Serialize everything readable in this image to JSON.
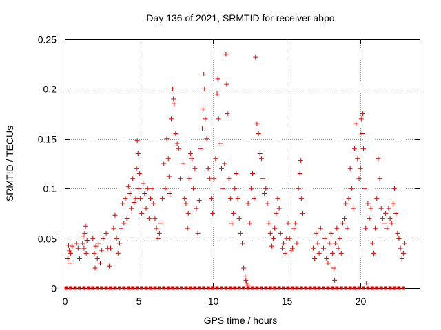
{
  "chart_data": {
    "type": "scatter",
    "title": "Day 136 of 2021, SRMTID for receiver abpo",
    "xlabel": "GPS time / hours",
    "ylabel": "SRMTID / TECUs",
    "xlim": [
      0,
      24
    ],
    "ylim": [
      0,
      0.25
    ],
    "x_ticks": [
      0,
      5,
      10,
      15,
      20
    ],
    "y_ticks": [
      0,
      0.05,
      0.1,
      0.15,
      0.2,
      0.25
    ],
    "x_tick_labels": [
      "0",
      "5",
      "10",
      "15",
      "20"
    ],
    "y_tick_labels": [
      "0",
      "0.05",
      "0.1",
      "0.15",
      "0.2",
      "0.25"
    ],
    "grid": true,
    "legend": "none",
    "marker": "plus",
    "color": "#e00000",
    "zero_marker": "square",
    "series": [
      {
        "name": "SRMTID",
        "points": [
          [
            0.2,
            0.03
          ],
          [
            0.25,
            0.043
          ],
          [
            0.3,
            0.038
          ],
          [
            0.35,
            0.025
          ],
          [
            0.4,
            0.035
          ],
          [
            0.5,
            0.042
          ],
          [
            0.8,
            0.045
          ],
          [
            0.9,
            0.04
          ],
          [
            1.0,
            0.03
          ],
          [
            1.2,
            0.045
          ],
          [
            1.25,
            0.052
          ],
          [
            1.3,
            0.04
          ],
          [
            1.35,
            0.055
          ],
          [
            1.4,
            0.062
          ],
          [
            1.45,
            0.035
          ],
          [
            1.5,
            0.048
          ],
          [
            1.9,
            0.05
          ],
          [
            2.0,
            0.035
          ],
          [
            2.05,
            0.02
          ],
          [
            2.1,
            0.042
          ],
          [
            2.2,
            0.03
          ],
          [
            2.3,
            0.045
          ],
          [
            2.4,
            0.025
          ],
          [
            2.5,
            0.038
          ],
          [
            2.6,
            0.05
          ],
          [
            2.8,
            0.055
          ],
          [
            2.9,
            0.04
          ],
          [
            3.0,
            0.022
          ],
          [
            3.1,
            0.04
          ],
          [
            3.3,
            0.06
          ],
          [
            3.4,
            0.073
          ],
          [
            3.5,
            0.05
          ],
          [
            3.6,
            0.035
          ],
          [
            3.7,
            0.045
          ],
          [
            3.8,
            0.06
          ],
          [
            3.9,
            0.085
          ],
          [
            4.0,
            0.065
          ],
          [
            4.1,
            0.09
          ],
          [
            4.2,
            0.07
          ],
          [
            4.3,
            0.102
          ],
          [
            4.4,
            0.095
          ],
          [
            4.5,
            0.08
          ],
          [
            4.6,
            0.11
          ],
          [
            4.7,
            0.086
          ],
          [
            4.8,
            0.09
          ],
          [
            4.85,
            0.12
          ],
          [
            4.9,
            0.148
          ],
          [
            4.95,
            0.135
          ],
          [
            5.0,
            0.1
          ],
          [
            5.05,
            0.115
          ],
          [
            5.1,
            0.09
          ],
          [
            5.2,
            0.075
          ],
          [
            5.3,
            0.105
          ],
          [
            5.4,
            0.095
          ],
          [
            5.5,
            0.08
          ],
          [
            5.6,
            0.1
          ],
          [
            5.7,
            0.07
          ],
          [
            5.8,
            0.09
          ],
          [
            5.9,
            0.1
          ],
          [
            6.0,
            0.085
          ],
          [
            6.1,
            0.07
          ],
          [
            6.2,
            0.06
          ],
          [
            6.3,
            0.05
          ],
          [
            6.4,
            0.055
          ],
          [
            6.5,
            0.065
          ],
          [
            6.6,
            0.09
          ],
          [
            6.7,
            0.125
          ],
          [
            6.8,
            0.1
          ],
          [
            6.9,
            0.15
          ],
          [
            7.0,
            0.13
          ],
          [
            7.05,
            0.112
          ],
          [
            7.1,
            0.095
          ],
          [
            7.2,
            0.17
          ],
          [
            7.3,
            0.2
          ],
          [
            7.35,
            0.19
          ],
          [
            7.4,
            0.185
          ],
          [
            7.5,
            0.155
          ],
          [
            7.6,
            0.145
          ],
          [
            7.7,
            0.14
          ],
          [
            7.8,
            0.11
          ],
          [
            8.0,
            0.125
          ],
          [
            8.1,
            0.09
          ],
          [
            8.2,
            0.085
          ],
          [
            8.3,
            0.06
          ],
          [
            8.35,
            0.075
          ],
          [
            8.4,
            0.11
          ],
          [
            8.5,
            0.135
          ],
          [
            8.6,
            0.13
          ],
          [
            8.7,
            0.1
          ],
          [
            8.8,
            0.12
          ],
          [
            8.9,
            0.08
          ],
          [
            9.0,
            0.055
          ],
          [
            9.1,
            0.088
          ],
          [
            9.2,
            0.14
          ],
          [
            9.3,
            0.16
          ],
          [
            9.35,
            0.18
          ],
          [
            9.4,
            0.215
          ],
          [
            9.45,
            0.2
          ],
          [
            9.5,
            0.17
          ],
          [
            9.6,
            0.15
          ],
          [
            9.7,
            0.12
          ],
          [
            9.8,
            0.11
          ],
          [
            9.9,
            0.09
          ],
          [
            10.0,
            0.075
          ],
          [
            10.1,
            0.11
          ],
          [
            10.2,
            0.13
          ],
          [
            10.3,
            0.195
          ],
          [
            10.35,
            0.21
          ],
          [
            10.4,
            0.17
          ],
          [
            10.5,
            0.145
          ],
          [
            10.6,
            0.12
          ],
          [
            10.7,
            0.1
          ],
          [
            10.8,
            0.125
          ],
          [
            10.9,
            0.235
          ],
          [
            10.95,
            0.205
          ],
          [
            11.0,
            0.175
          ],
          [
            11.1,
            0.11
          ],
          [
            11.2,
            0.09
          ],
          [
            11.3,
            0.065
          ],
          [
            11.4,
            0.075
          ],
          [
            11.5,
            0.1
          ],
          [
            11.6,
            0.115
          ],
          [
            11.7,
            0.09
          ],
          [
            11.8,
            0.07
          ],
          [
            11.9,
            0.055
          ],
          [
            12.0,
            0.045
          ],
          [
            12.1,
            0.02
          ],
          [
            12.2,
            0.012
          ],
          [
            12.25,
            0.008
          ],
          [
            12.3,
            0.005
          ],
          [
            12.35,
            0.003
          ],
          [
            12.4,
            0.085
          ],
          [
            12.5,
            0.065
          ],
          [
            12.6,
            0.1
          ],
          [
            12.7,
            0.115
          ],
          [
            12.8,
            0.09
          ],
          [
            12.9,
            0.232
          ],
          [
            13.0,
            0.165
          ],
          [
            13.1,
            0.155
          ],
          [
            13.2,
            0.135
          ],
          [
            13.3,
            0.13
          ],
          [
            13.4,
            0.11
          ],
          [
            13.5,
            0.095
          ],
          [
            13.6,
            0.1
          ],
          [
            13.7,
            0.085
          ],
          [
            13.8,
            0.065
          ],
          [
            13.9,
            0.055
          ],
          [
            14.0,
            0.042
          ],
          [
            14.1,
            0.05
          ],
          [
            14.2,
            0.06
          ],
          [
            14.3,
            0.075
          ],
          [
            14.4,
            0.09
          ],
          [
            14.5,
            0.08
          ],
          [
            14.6,
            0.055
          ],
          [
            14.7,
            0.04
          ],
          [
            14.8,
            0.045
          ],
          [
            14.9,
            0.035
          ],
          [
            15.0,
            0.05
          ],
          [
            15.1,
            0.065
          ],
          [
            15.2,
            0.05
          ],
          [
            15.3,
            0.038
          ],
          [
            15.4,
            0.04
          ],
          [
            15.5,
            0.06
          ],
          [
            15.6,
            0.065
          ],
          [
            15.7,
            0.045
          ],
          [
            15.8,
            0.1
          ],
          [
            15.9,
            0.115
          ],
          [
            15.95,
            0.128
          ],
          [
            16.0,
            0.09
          ],
          [
            16.1,
            0.075
          ],
          [
            16.8,
            0.04
          ],
          [
            16.9,
            0.03
          ],
          [
            17.0,
            0.055
          ],
          [
            17.1,
            0.045
          ],
          [
            17.2,
            0.035
          ],
          [
            17.3,
            0.06
          ],
          [
            17.5,
            0.04
          ],
          [
            17.6,
            0.05
          ],
          [
            17.7,
            0.03
          ],
          [
            17.8,
            0.025
          ],
          [
            17.9,
            0.045
          ],
          [
            18.0,
            0.055
          ],
          [
            18.1,
            0.035
          ],
          [
            18.2,
            0.02
          ],
          [
            18.25,
            0.008
          ],
          [
            18.3,
            0.045
          ],
          [
            18.4,
            0.06
          ],
          [
            18.5,
            0.04
          ],
          [
            18.6,
            0.05
          ],
          [
            18.7,
            0.035
          ],
          [
            18.8,
            0.065
          ],
          [
            18.9,
            0.07
          ],
          [
            19.0,
            0.085
          ],
          [
            19.1,
            0.06
          ],
          [
            19.2,
            0.09
          ],
          [
            19.3,
            0.12
          ],
          [
            19.4,
            0.1
          ],
          [
            19.5,
            0.08
          ],
          [
            19.6,
            0.14
          ],
          [
            19.7,
            0.165
          ],
          [
            19.8,
            0.13
          ],
          [
            19.9,
            0.11
          ],
          [
            20.0,
            0.12
          ],
          [
            20.05,
            0.17
          ],
          [
            20.1,
            0.155
          ],
          [
            20.15,
            0.175
          ],
          [
            20.2,
            0.14
          ],
          [
            20.3,
            0.1
          ],
          [
            20.35,
            0.06
          ],
          [
            20.4,
            0.005
          ],
          [
            20.5,
            0.085
          ],
          [
            20.6,
            0.07
          ],
          [
            20.7,
            0.08
          ],
          [
            20.8,
            0.045
          ],
          [
            20.9,
            0.035
          ],
          [
            21.0,
            0.06
          ],
          [
            21.1,
            0.09
          ],
          [
            21.2,
            0.13
          ],
          [
            21.3,
            0.11
          ],
          [
            21.4,
            0.08
          ],
          [
            21.5,
            0.07
          ],
          [
            21.6,
            0.065
          ],
          [
            21.7,
            0.075
          ],
          [
            21.8,
            0.06
          ],
          [
            21.9,
            0.08
          ],
          [
            22.0,
            0.07
          ],
          [
            22.1,
            0.065
          ],
          [
            22.2,
            0.085
          ],
          [
            22.3,
            0.1
          ],
          [
            22.4,
            0.075
          ],
          [
            22.5,
            0.055
          ],
          [
            22.6,
            0.05
          ],
          [
            22.7,
            0.04
          ],
          [
            22.8,
            0.03
          ],
          [
            22.9,
            0.035
          ],
          [
            23.0,
            0.045
          ]
        ]
      }
    ],
    "zero_points": [
      0.1,
      0.4,
      0.7,
      1.0,
      1.3,
      1.6,
      1.9,
      2.2,
      2.5,
      2.8,
      3.1,
      3.4,
      3.7,
      4.0,
      4.3,
      4.6,
      4.9,
      5.2,
      5.5,
      5.8,
      6.1,
      6.4,
      6.7,
      7.0,
      7.3,
      7.6,
      7.9,
      8.2,
      8.5,
      8.8,
      9.1,
      9.4,
      9.7,
      10.0,
      10.3,
      10.6,
      10.9,
      11.2,
      11.5,
      11.8,
      12.1,
      12.4,
      12.7,
      13.0,
      13.3,
      13.6,
      13.9,
      14.2,
      14.5,
      14.8,
      15.1,
      15.4,
      15.7,
      16.0,
      16.3,
      16.6,
      16.9,
      17.2,
      17.5,
      17.8,
      18.1,
      18.4,
      18.7,
      19.0,
      19.3,
      19.6,
      19.9,
      20.2,
      20.5,
      20.8,
      21.1,
      21.4,
      21.7,
      22.0,
      22.3,
      22.6,
      22.9
    ]
  }
}
